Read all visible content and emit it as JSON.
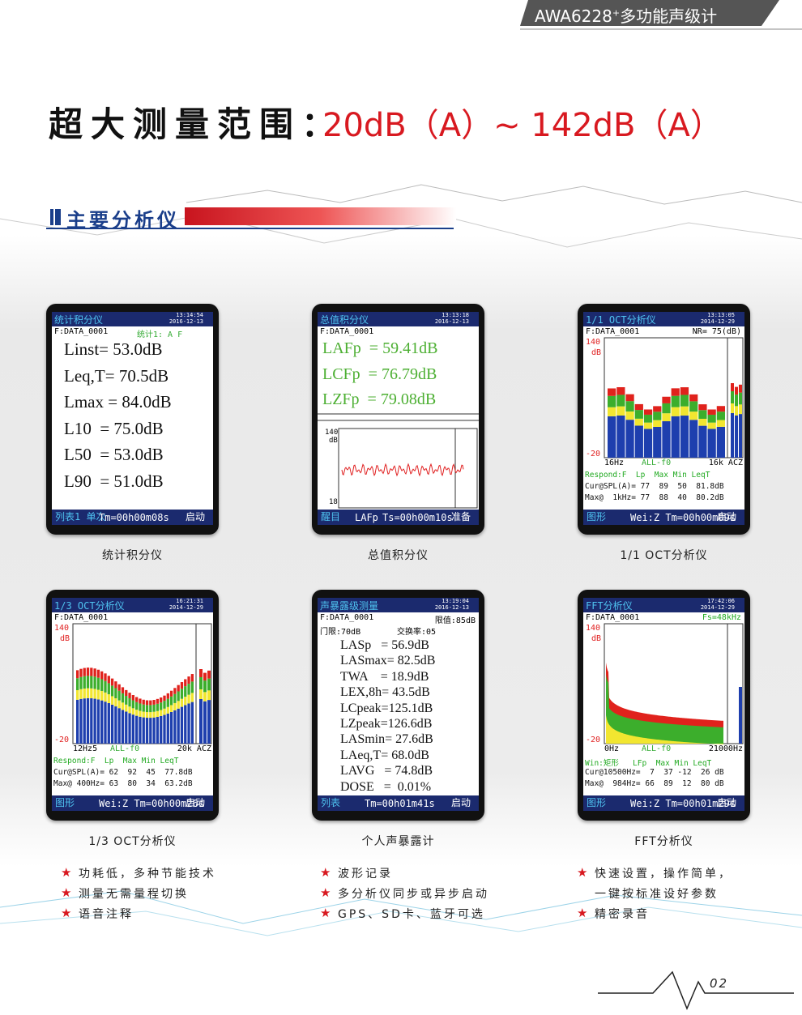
{
  "header": {
    "model": "AWA6228",
    "sup": "+",
    "name": "多功能声级计"
  },
  "headline": {
    "lead": "超大测量范围：",
    "range": "20dB（A）~ 142dB（A）"
  },
  "section_title": "主要分析仪",
  "screens": [
    {
      "title": "统计积分仪",
      "time": "13:14:54",
      "date": "2016-12-13",
      "file": "F:DATA_0001",
      "extra": "统计1: A F",
      "lines": [
        "Linst= 53.0dB",
        "Leq,T= 70.5dB",
        "Lmax = 84.0dB",
        "L10  = 75.0dB",
        "L50  = 53.0dB",
        "L90  = 51.0dB"
      ],
      "footer": [
        "列表1 单次",
        "Tm=00h00m08s",
        "启动"
      ],
      "caption": "统计积分仪"
    },
    {
      "title": "总值积分仪",
      "time": "13:13:18",
      "date": "2016-12-13",
      "file": "F:DATA_0001",
      "lines": [
        "LAFp  = 59.41dB",
        "LCFp  = 76.79dB",
        "LZFp  = 79.08dB"
      ],
      "graph": {
        "top": "140",
        "unit": "dB",
        "bottom": "18"
      },
      "footer": [
        "醒目",
        "LAFp",
        "Ts=00h00m10s",
        "准备"
      ],
      "caption": "总值积分仪"
    },
    {
      "title": "1/1 OCT分析仪",
      "time": "13:13:05",
      "date": "2014-12-29",
      "file": "F:DATA_0001",
      "extra": "NR= 75(dB)",
      "axis": {
        "top": "140",
        "unit": "dB",
        "bottom": "-20",
        "x": [
          "16Hz",
          "ALL-f0",
          "16k ACZ"
        ],
        "rows": [
          "Respond:F  Lp  Max Min LeqT",
          "Cur@SPL(A)= 77  89  50  81.8dB",
          "Max@  1kHz= 77  88  40  80.2dB"
        ]
      },
      "footer": [
        "图形",
        "Wei:Z Tm=00h00m09s",
        "启动"
      ],
      "caption": "1/1  OCT分析仪"
    },
    {
      "title": "1/3 OCT分析仪",
      "time": "16:21:31",
      "date": "2014-12-29",
      "file": "F:DATA_0001",
      "axis": {
        "top": "140",
        "unit": "dB",
        "bottom": "-20",
        "x": [
          "12Hz5",
          "ALL-f0",
          "20k ACZ"
        ],
        "rows": [
          "Respond:F  Lp  Max Min LeqT",
          "Cur@SPL(A)= 62  92  45  77.8dB",
          "Max@ 400Hz= 63  80  34  63.2dB"
        ]
      },
      "footer": [
        "图形",
        "Wei:Z Tm=00h00m26s",
        "启动"
      ],
      "caption": "1/3  OCT分析仪"
    },
    {
      "title": "声暴露级测量",
      "time": "13:19:04",
      "date": "2016-12-13",
      "file": "F:DATA_0001",
      "extra": "限值:85dB",
      "settings_row": [
        "门限:70dB",
        "交换率:05"
      ],
      "lines": [
        "LASp   = 56.9dB",
        "LASmax= 82.5dB",
        "TWA    = 18.9dB",
        "LEX,8h= 43.5dB",
        "LCpeak=125.1dB",
        "LZpeak=126.6dB",
        "LASmin= 27.6dB",
        "LAeq,T= 68.0dB",
        "LAVG   = 74.8dB",
        "DOSE   =  0.01%"
      ],
      "footer": [
        "列表",
        "Tm=00h01m41s",
        "启动"
      ],
      "caption": "个人声暴露计"
    },
    {
      "title": "FFT分析仪",
      "time": "17:42:06",
      "date": "2014-12-29",
      "file": "F:DATA_0001",
      "extra": "Fs=48kHz",
      "axis": {
        "top": "140",
        "unit": "dB",
        "bottom": "-20",
        "x": [
          "0Hz",
          "ALL-f0",
          "21000Hz"
        ],
        "rows": [
          "Win:矩形   LFp  Max Min LeqT",
          "Cur@10500Hz=  7  37 -12  26 dB",
          "Max@  984Hz= 66  89  12  80 dB"
        ]
      },
      "footer": [
        "图形",
        "Wei:Z Tm=00h01m29s",
        "启动"
      ],
      "caption": "FFT分析仪"
    }
  ],
  "features": [
    [
      [
        "功耗低，多种节能技术"
      ],
      [
        "测量无需量程切换"
      ],
      [
        "语音注释"
      ]
    ],
    [
      [
        "波形记录"
      ],
      [
        "多分析仪同步或异步启动"
      ],
      [
        "GPS、SD卡、蓝牙可选"
      ]
    ],
    [
      [
        "快速设置，操作简单，",
        "一键按标准设好参数"
      ],
      [
        "精密录音"
      ]
    ]
  ],
  "page_number": "02"
}
